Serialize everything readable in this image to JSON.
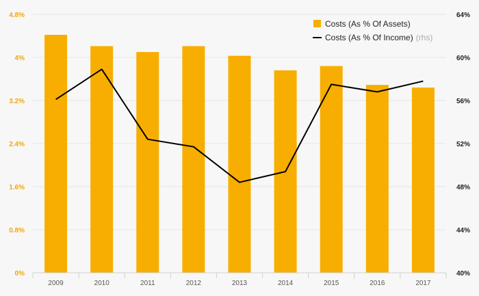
{
  "chart_data": {
    "type": "bar+line",
    "categories": [
      "2009",
      "2010",
      "2011",
      "2012",
      "2013",
      "2014",
      "2015",
      "2016",
      "2017"
    ],
    "series": [
      {
        "name": "Costs (As % Of Assets)",
        "type": "bar",
        "axis": "left",
        "color": "#f7ae00",
        "values": [
          4.42,
          4.21,
          4.1,
          4.21,
          4.03,
          3.76,
          3.84,
          3.49,
          3.44
        ]
      },
      {
        "name": "Costs (As % Of Income)",
        "legend_note": "(rhs)",
        "type": "line",
        "axis": "right",
        "color": "#000000",
        "values": [
          56.1,
          58.9,
          52.4,
          51.7,
          48.4,
          49.4,
          57.5,
          56.8,
          57.8
        ]
      }
    ],
    "y_left": {
      "lim": [
        0,
        4.8
      ],
      "ticks": [
        0,
        0.8,
        1.6,
        2.4,
        3.2,
        4.0,
        4.8
      ],
      "tick_labels": [
        "0%",
        "0.8%",
        "1.6%",
        "2.4%",
        "3.2%",
        "4%",
        "4.8%"
      ],
      "color": "#f2a900"
    },
    "y_right": {
      "lim": [
        40,
        64
      ],
      "ticks": [
        40,
        44,
        48,
        52,
        56,
        60,
        64
      ],
      "tick_labels": [
        "40%",
        "44%",
        "48%",
        "52%",
        "56%",
        "60%",
        "64%"
      ],
      "color": "#222222"
    },
    "title": "",
    "xlabel": "",
    "legend_position": "top-right",
    "grid": true
  }
}
